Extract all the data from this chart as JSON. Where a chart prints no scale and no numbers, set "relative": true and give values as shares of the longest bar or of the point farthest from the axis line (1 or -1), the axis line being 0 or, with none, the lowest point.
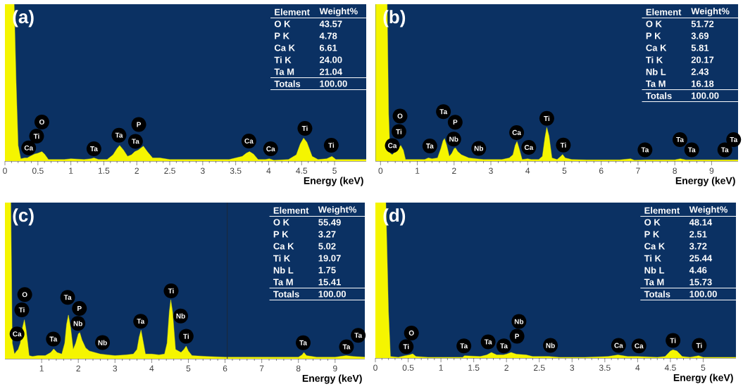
{
  "chart_data": [
    {
      "type": "area",
      "title": "(a)",
      "xlabel": "Energy (keV)",
      "relative": true,
      "xlim": [
        0,
        5.48
      ],
      "xticks": [
        0,
        0.5,
        1,
        1.5,
        2,
        2.5,
        3,
        3.5,
        4,
        4.5,
        5
      ],
      "series": [
        {
          "color": "#f5f500",
          "x": [
            0,
            0.14,
            0.17,
            0.2,
            0.24,
            0.3,
            0.34,
            0.38,
            0.45,
            0.5,
            0.56,
            0.6,
            0.66,
            0.75,
            0.9,
            1.0,
            1.2,
            1.3,
            1.35,
            1.42,
            1.55,
            1.64,
            1.7,
            1.74,
            1.8,
            1.86,
            1.92,
            1.97,
            2.02,
            2.1,
            2.16,
            2.24,
            2.35,
            2.5,
            2.8,
            3.0,
            3.25,
            3.4,
            3.5,
            3.6,
            3.66,
            3.71,
            3.77,
            3.84,
            3.95,
            4.01,
            4.08,
            4.3,
            4.42,
            4.48,
            4.53,
            4.58,
            4.66,
            4.75,
            4.88,
            4.96,
            5.02,
            5.2,
            5.48
          ],
          "values": [
            1,
            1,
            0.5,
            0.1,
            0.015,
            0.02,
            0.02,
            0.03,
            0.045,
            0.05,
            0.06,
            0.045,
            0.01,
            0.01,
            0.01,
            0.015,
            0.01,
            0.015,
            0.02,
            0.01,
            0.01,
            0.04,
            0.08,
            0.1,
            0.07,
            0.03,
            0.04,
            0.06,
            0.07,
            0.095,
            0.06,
            0.02,
            0.02,
            0.01,
            0.01,
            0.01,
            0.01,
            0.01,
            0.02,
            0.03,
            0.05,
            0.06,
            0.045,
            0.01,
            0.01,
            0.015,
            0.005,
            0.01,
            0.04,
            0.11,
            0.147,
            0.12,
            0.03,
            0.01,
            0.015,
            0.03,
            0.01,
            0.01,
            0.01
          ]
        }
      ],
      "annotations": [
        {
          "text": "Ca",
          "x": 0.36,
          "y": 0.084
        },
        {
          "text": "Ti",
          "x": 0.48,
          "y": 0.159
        },
        {
          "text": "O",
          "x": 0.56,
          "y": 0.249
        },
        {
          "text": "Ta",
          "x": 1.35,
          "y": 0.078
        },
        {
          "text": "Ta",
          "x": 1.73,
          "y": 0.165
        },
        {
          "text": "Ta",
          "x": 1.98,
          "y": 0.126
        },
        {
          "text": "P",
          "x": 2.03,
          "y": 0.233
        },
        {
          "text": "Ca",
          "x": 3.7,
          "y": 0.128
        },
        {
          "text": "Ca",
          "x": 4.03,
          "y": 0.078
        },
        {
          "text": "Ti",
          "x": 4.55,
          "y": 0.209
        },
        {
          "text": "Ti",
          "x": 4.95,
          "y": 0.101
        },
        "Element",
        "Weight%",
        "O K",
        "43.57",
        "P K",
        "4.78",
        "Ca K",
        "6.61",
        "Ti K",
        "24.00",
        "Ta M",
        "21.04",
        "Totals",
        "100.00"
      ]
    },
    {
      "type": "area",
      "title": "(b)",
      "xlabel": "Energy (keV)",
      "relative": true,
      "xlim": [
        -0.14,
        9.72
      ],
      "xticks": [
        0,
        1,
        2,
        3,
        4,
        5,
        6,
        7,
        8,
        9
      ],
      "series": [
        {
          "color": "#f5f500",
          "x": [
            -0.13,
            0.18,
            0.22,
            0.26,
            0.32,
            0.4,
            0.47,
            0.55,
            0.62,
            0.68,
            0.8,
            1.0,
            1.2,
            1.3,
            1.4,
            1.55,
            1.64,
            1.7,
            1.74,
            1.8,
            1.87,
            1.94,
            2.0,
            2.04,
            2.1,
            2.2,
            2.3,
            2.4,
            2.6,
            2.8,
            3.0,
            3.3,
            3.5,
            3.6,
            3.66,
            3.71,
            3.77,
            3.85,
            4.0,
            4.1,
            4.3,
            4.4,
            4.47,
            4.52,
            4.58,
            4.66,
            4.8,
            4.9,
            4.95,
            5.02,
            5.2,
            5.6,
            6.0,
            6.5,
            6.8,
            6.9,
            7.2,
            7.6,
            8.0,
            8.15,
            8.3,
            8.8,
            9.3,
            9.72
          ],
          "values": [
            1,
            1,
            0.3,
            0.05,
            0.04,
            0.06,
            0.08,
            0.1,
            0.07,
            0.01,
            0.01,
            0.01,
            0.01,
            0.02,
            0.015,
            0.02,
            0.08,
            0.13,
            0.144,
            0.1,
            0.03,
            0.05,
            0.08,
            0.084,
            0.06,
            0.04,
            0.03,
            0.02,
            0.015,
            0.01,
            0.01,
            0.01,
            0.02,
            0.04,
            0.1,
            0.125,
            0.08,
            0.01,
            0.015,
            0.01,
            0.01,
            0.03,
            0.15,
            0.215,
            0.16,
            0.02,
            0.01,
            0.03,
            0.042,
            0.02,
            0.01,
            0.008,
            0.008,
            0.008,
            0.015,
            0.005,
            0.008,
            0.008,
            0.008,
            0.015,
            0.008,
            0.008,
            0.008,
            0.008
          ]
        }
      ],
      "annotations": [
        {
          "text": "Ca",
          "x": 0.32,
          "y": 0.099
        },
        {
          "text": "Ti",
          "x": 0.5,
          "y": 0.188
        },
        {
          "text": "O",
          "x": 0.53,
          "y": 0.287
        },
        {
          "text": "Ta",
          "x": 1.34,
          "y": 0.096
        },
        {
          "text": "Ta",
          "x": 1.71,
          "y": 0.315
        },
        {
          "text": "P",
          "x": 2.03,
          "y": 0.248
        },
        {
          "text": "Nb",
          "x": 1.99,
          "y": 0.14
        },
        {
          "text": "Nb",
          "x": 2.67,
          "y": 0.081
        },
        {
          "text": "Ca",
          "x": 3.7,
          "y": 0.182
        },
        {
          "text": "Ca",
          "x": 4.03,
          "y": 0.087
        },
        {
          "text": "Ti",
          "x": 4.52,
          "y": 0.272
        },
        {
          "text": "Ti",
          "x": 4.97,
          "y": 0.102
        },
        {
          "text": "Ta",
          "x": 7.19,
          "y": 0.072
        },
        {
          "text": "Ta",
          "x": 8.14,
          "y": 0.137
        },
        {
          "text": "Ta",
          "x": 8.46,
          "y": 0.072
        },
        {
          "text": "Ta",
          "x": 9.36,
          "y": 0.072
        },
        {
          "text": "Ta",
          "x": 9.6,
          "y": 0.137
        },
        "Element",
        "Weight%",
        "O K",
        "51.72",
        "P K",
        "3.69",
        "Ca K",
        "5.81",
        "Ti K",
        "20.17",
        "Nb L",
        "2.43",
        "Ta M",
        "16.18",
        "Totals",
        "100.00"
      ]
    },
    {
      "type": "area",
      "title": "(c)",
      "xlabel": "Energy (keV)",
      "relative": true,
      "xlim": [
        0,
        9.81
      ],
      "xticks": [
        1,
        2,
        3,
        4,
        5,
        6,
        7,
        8,
        9
      ],
      "ref_lines": [
        {
          "axis": "x",
          "value": 6.06,
          "color": "#1c2a3a"
        }
      ],
      "series": [
        {
          "color": "#f5f500",
          "x": [
            0,
            0.16,
            0.2,
            0.26,
            0.32,
            0.36,
            0.42,
            0.48,
            0.53,
            0.58,
            0.66,
            0.75,
            0.9,
            1.1,
            1.25,
            1.33,
            1.42,
            1.55,
            1.63,
            1.68,
            1.73,
            1.79,
            1.86,
            1.93,
            2.0,
            2.04,
            2.1,
            2.2,
            2.3,
            2.45,
            2.6,
            2.8,
            3.0,
            3.3,
            3.5,
            3.6,
            3.66,
            3.71,
            3.76,
            3.83,
            4.0,
            4.2,
            4.35,
            4.42,
            4.48,
            4.52,
            4.57,
            4.65,
            4.8,
            4.88,
            4.94,
            5.0,
            5.1,
            5.5,
            6.0,
            6.5,
            7.0,
            7.5,
            8.0,
            8.1,
            8.15,
            8.22,
            8.5,
            9.0,
            9.3,
            9.5,
            9.81
          ],
          "values": [
            1,
            1,
            0.1,
            0.03,
            0.05,
            0.06,
            0.1,
            0.2,
            0.25,
            0.18,
            0.02,
            0.015,
            0.02,
            0.02,
            0.04,
            0.063,
            0.04,
            0.03,
            0.1,
            0.22,
            0.28,
            0.2,
            0.06,
            0.1,
            0.16,
            0.168,
            0.12,
            0.07,
            0.05,
            0.04,
            0.03,
            0.025,
            0.02,
            0.025,
            0.03,
            0.06,
            0.14,
            0.183,
            0.12,
            0.03,
            0.03,
            0.025,
            0.03,
            0.1,
            0.3,
            0.378,
            0.3,
            0.06,
            0.04,
            0.06,
            0.081,
            0.05,
            0.02,
            0.015,
            0.01,
            0.01,
            0.01,
            0.01,
            0.01,
            0.025,
            0.04,
            0.02,
            0.01,
            0.01,
            0.02,
            0.015,
            0.01
          ]
        }
      ],
      "annotations": [
        {
          "text": "Ca",
          "x": 0.33,
          "y": 0.159
        },
        {
          "text": "Ti",
          "x": 0.46,
          "y": 0.313
        },
        {
          "text": "O",
          "x": 0.54,
          "y": 0.411
        },
        {
          "text": "Ta",
          "x": 1.32,
          "y": 0.126
        },
        {
          "text": "Ta",
          "x": 1.71,
          "y": 0.393
        },
        {
          "text": "P",
          "x": 2.03,
          "y": 0.322
        },
        {
          "text": "Nb",
          "x": 1.99,
          "y": 0.226
        },
        {
          "text": "Nb",
          "x": 2.66,
          "y": 0.103
        },
        {
          "text": "Ta",
          "x": 3.7,
          "y": 0.24
        },
        {
          "text": "Ti",
          "x": 4.53,
          "y": 0.435
        },
        {
          "text": "Nb",
          "x": 4.79,
          "y": 0.274
        },
        {
          "text": "Ti",
          "x": 4.94,
          "y": 0.144
        },
        {
          "text": "Ta",
          "x": 8.13,
          "y": 0.102
        },
        {
          "text": "Ta",
          "x": 9.31,
          "y": 0.076
        },
        {
          "text": "Ta",
          "x": 9.63,
          "y": 0.15
        },
        "Element",
        "Weight%",
        "O K",
        "55.49",
        "P K",
        "3.27",
        "Ca K",
        "5.02",
        "Ti K",
        "19.07",
        "Nb L",
        "1.75",
        "Ta M",
        "15.41",
        "Totals",
        "100.00"
      ]
    },
    {
      "type": "area",
      "title": "(d)",
      "xlabel": "Energy (keV)",
      "relative": true,
      "xlim": [
        0,
        5.5
      ],
      "xticks": [
        0,
        0.5,
        1,
        1.5,
        2,
        2.5,
        3,
        3.5,
        4,
        4.5,
        5
      ],
      "series": [
        {
          "color": "#f5f500",
          "x": [
            0,
            0.16,
            0.2,
            0.23,
            0.35,
            0.45,
            0.52,
            0.57,
            0.62,
            0.8,
            1.0,
            1.33,
            1.36,
            1.6,
            1.7,
            1.77,
            1.85,
            1.95,
            2.0,
            2.07,
            2.15,
            2.3,
            2.4,
            2.65,
            2.8,
            3.2,
            3.55,
            3.7,
            3.85,
            4.0,
            4.3,
            4.42,
            4.5,
            4.54,
            4.6,
            4.68,
            4.8,
            4.93,
            5.0,
            5.5
          ],
          "values": [
            1,
            1,
            0.3,
            0.01,
            0.005,
            0.015,
            0.02,
            0.027,
            0.01,
            0.005,
            0.005,
            0.005,
            0.015,
            0.01,
            0.02,
            0.036,
            0.02,
            0.02,
            0.025,
            0.036,
            0.025,
            0.02,
            0.01,
            0.01,
            0.005,
            0.005,
            0.01,
            0.02,
            0.01,
            0.01,
            0.005,
            0.01,
            0.045,
            0.053,
            0.045,
            0.01,
            0.005,
            0.015,
            0.005,
            0.005
          ]
        }
      ],
      "annotations": [
        {
          "text": "Ti",
          "x": 0.47,
          "y": 0.074
        },
        {
          "text": "O",
          "x": 0.55,
          "y": 0.161
        },
        {
          "text": "Ta",
          "x": 1.35,
          "y": 0.078
        },
        {
          "text": "Ta",
          "x": 1.72,
          "y": 0.104
        },
        {
          "text": "Ta",
          "x": 1.96,
          "y": 0.078
        },
        {
          "text": "P",
          "x": 2.16,
          "y": 0.14
        },
        {
          "text": "Nb",
          "x": 2.19,
          "y": 0.235
        },
        {
          "text": "Nb",
          "x": 2.67,
          "y": 0.081
        },
        {
          "text": "Ca",
          "x": 3.71,
          "y": 0.081
        },
        {
          "text": "Ca",
          "x": 4.02,
          "y": 0.078
        },
        {
          "text": "Ti",
          "x": 4.54,
          "y": 0.113
        },
        {
          "text": "Ti",
          "x": 4.94,
          "y": 0.081
        },
        "Element",
        "Weight%",
        "O K",
        "48.14",
        "P K",
        "2.51",
        "Ca K",
        "3.72",
        "Ti K",
        "25.44",
        "Nb L",
        "4.46",
        "Ta M",
        "15.73",
        "Totals",
        "100.00"
      ]
    }
  ]
}
